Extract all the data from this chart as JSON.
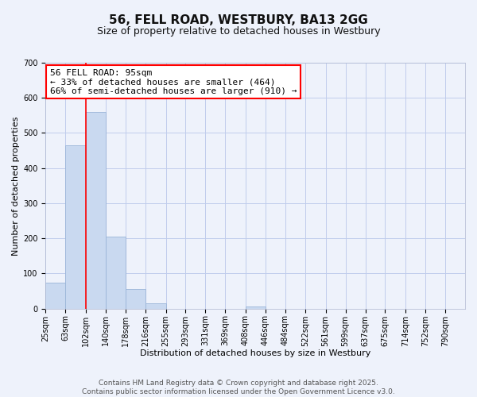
{
  "title": "56, FELL ROAD, WESTBURY, BA13 2GG",
  "subtitle": "Size of property relative to detached houses in Westbury",
  "xlabel": "Distribution of detached houses by size in Westbury",
  "ylabel": "Number of detached properties",
  "bar_values": [
    75,
    465,
    560,
    205,
    55,
    15,
    0,
    0,
    0,
    0,
    5,
    0,
    0,
    0,
    0,
    0,
    0,
    0,
    0,
    0
  ],
  "bin_labels": [
    "25sqm",
    "63sqm",
    "102sqm",
    "140sqm",
    "178sqm",
    "216sqm",
    "255sqm",
    "293sqm",
    "331sqm",
    "369sqm",
    "408sqm",
    "446sqm",
    "484sqm",
    "522sqm",
    "561sqm",
    "599sqm",
    "637sqm",
    "675sqm",
    "714sqm",
    "752sqm",
    "790sqm"
  ],
  "bin_edges": [
    25,
    63,
    102,
    140,
    178,
    216,
    255,
    293,
    331,
    369,
    408,
    446,
    484,
    522,
    561,
    599,
    637,
    675,
    714,
    752,
    790
  ],
  "bar_color": "#c9d9f0",
  "bar_edge_color": "#9ab5d8",
  "vline_x": 102,
  "vline_color": "red",
  "ylim": [
    0,
    700
  ],
  "yticks": [
    0,
    100,
    200,
    300,
    400,
    500,
    600,
    700
  ],
  "annotation_title": "56 FELL ROAD: 95sqm",
  "annotation_line1": "← 33% of detached houses are smaller (464)",
  "annotation_line2": "66% of semi-detached houses are larger (910) →",
  "annotation_box_color": "#ffffff",
  "annotation_box_edge": "red",
  "background_color": "#eef2fb",
  "grid_color": "#c0ccec",
  "footer1": "Contains HM Land Registry data © Crown copyright and database right 2025.",
  "footer2": "Contains public sector information licensed under the Open Government Licence v3.0.",
  "title_fontsize": 11,
  "subtitle_fontsize": 9,
  "axis_label_fontsize": 8,
  "tick_fontsize": 7,
  "annotation_fontsize": 8,
  "footer_fontsize": 6.5
}
